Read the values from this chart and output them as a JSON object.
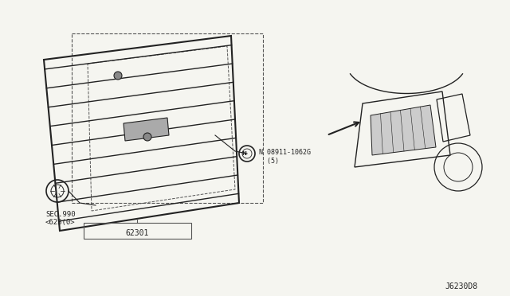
{
  "title": "",
  "bg_color": "#f5f5f0",
  "line_color": "#555555",
  "dark_color": "#222222",
  "label_62301": "62301",
  "label_sec": "SEC.990",
  "label_sec2": "<623(0>",
  "label_bolt": "N 08911-1062G\n  (5)",
  "label_diagram_id": "J6230D8",
  "figsize": [
    6.4,
    3.72
  ],
  "dpi": 100
}
